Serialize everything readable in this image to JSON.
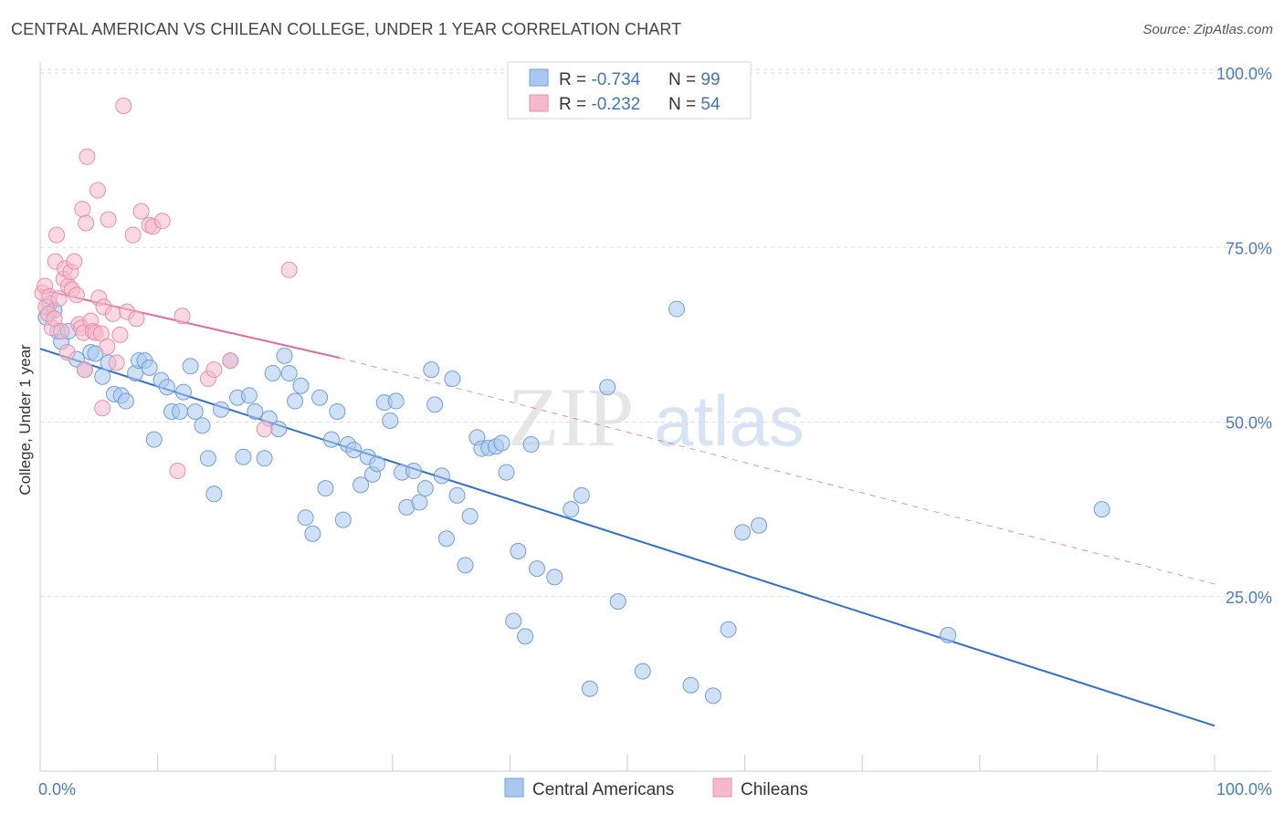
{
  "title": "CENTRAL AMERICAN VS CHILEAN COLLEGE, UNDER 1 YEAR CORRELATION CHART",
  "source": "Source: ZipAtlas.com",
  "watermark": {
    "zip": "ZIP",
    "atlas": "atlas"
  },
  "colors": {
    "blue_fill": "#a9c8f0",
    "blue_stroke": "#6f9fdb",
    "blue_line": "#2f6fd0",
    "pink_fill": "#f6b9cb",
    "pink_stroke": "#ea8eab",
    "pink_line": "#e36893",
    "grid": "#dddddd",
    "tick": "#4a7ac8"
  },
  "legend": {
    "rows": [
      {
        "r_label": "R = ",
        "r_value": "-0.734",
        "n_label": "N = ",
        "n_value": "99"
      },
      {
        "r_label": "R = ",
        "r_value": "-0.232",
        "n_label": "N = ",
        "n_value": "54"
      }
    ]
  },
  "chart_data": {
    "type": "scatter",
    "title": "CENTRAL AMERICAN VS CHILEAN COLLEGE, UNDER 1 YEAR CORRELATION CHART",
    "xlabel": "",
    "ylabel": "College, Under 1 year",
    "xlim": [
      0,
      100
    ],
    "ylim": [
      0,
      100
    ],
    "x_tick_labels": [
      "0.0%",
      "100.0%"
    ],
    "y_ticks": [
      25,
      50,
      75,
      100
    ],
    "y_tick_labels": [
      "25.0%",
      "50.0%",
      "75.0%",
      "100.0%"
    ],
    "grid": true,
    "series": [
      {
        "name": "Central Americans",
        "color": "#a9c8f0",
        "trend": {
          "x": [
            0,
            100
          ],
          "y": [
            60.5,
            6.5
          ],
          "style": "solid"
        },
        "points": [
          [
            0.5,
            65
          ],
          [
            0.8,
            67
          ],
          [
            1.2,
            66
          ],
          [
            1.5,
            63
          ],
          [
            1.8,
            61.5
          ],
          [
            2.4,
            63
          ],
          [
            3.1,
            59
          ],
          [
            3.8,
            57.5
          ],
          [
            4.3,
            60
          ],
          [
            4.7,
            59.8
          ],
          [
            5.3,
            56.5
          ],
          [
            5.8,
            58.5
          ],
          [
            6.3,
            54
          ],
          [
            6.9,
            53.8
          ],
          [
            7.3,
            53
          ],
          [
            8.1,
            57
          ],
          [
            8.4,
            58.8
          ],
          [
            8.9,
            58.8
          ],
          [
            9.3,
            57.8
          ],
          [
            9.7,
            47.5
          ],
          [
            10.3,
            56
          ],
          [
            10.8,
            55
          ],
          [
            11.2,
            51.5
          ],
          [
            11.9,
            51.5
          ],
          [
            12.2,
            54.3
          ],
          [
            12.8,
            58
          ],
          [
            13.2,
            51.5
          ],
          [
            13.8,
            49.5
          ],
          [
            14.3,
            44.8
          ],
          [
            14.8,
            39.7
          ],
          [
            15.4,
            51.8
          ],
          [
            16.2,
            58.8
          ],
          [
            16.8,
            53.5
          ],
          [
            17.3,
            45
          ],
          [
            17.8,
            53.8
          ],
          [
            18.3,
            51.5
          ],
          [
            19.1,
            44.8
          ],
          [
            19.5,
            50.5
          ],
          [
            19.8,
            57
          ],
          [
            20.3,
            49
          ],
          [
            20.8,
            59.5
          ],
          [
            21.2,
            57
          ],
          [
            21.7,
            53
          ],
          [
            22.2,
            55.2
          ],
          [
            22.6,
            36.3
          ],
          [
            23.2,
            34
          ],
          [
            23.8,
            53.5
          ],
          [
            24.3,
            40.5
          ],
          [
            24.8,
            47.5
          ],
          [
            25.3,
            51.5
          ],
          [
            25.8,
            36
          ],
          [
            26.2,
            46.8
          ],
          [
            26.7,
            46
          ],
          [
            27.3,
            41
          ],
          [
            27.9,
            45
          ],
          [
            28.3,
            42.5
          ],
          [
            28.7,
            44
          ],
          [
            29.3,
            52.8
          ],
          [
            29.8,
            50.2
          ],
          [
            30.3,
            53
          ],
          [
            30.8,
            42.8
          ],
          [
            31.2,
            37.8
          ],
          [
            31.8,
            43
          ],
          [
            32.3,
            38.5
          ],
          [
            32.8,
            40.5
          ],
          [
            33.3,
            57.5
          ],
          [
            33.6,
            52.5
          ],
          [
            34.2,
            42.3
          ],
          [
            34.6,
            33.3
          ],
          [
            35.1,
            56.2
          ],
          [
            35.5,
            39.5
          ],
          [
            36.2,
            29.5
          ],
          [
            36.6,
            36.5
          ],
          [
            37.2,
            47.8
          ],
          [
            37.6,
            46.2
          ],
          [
            38.2,
            46.3
          ],
          [
            38.8,
            46.5
          ],
          [
            39.3,
            47
          ],
          [
            39.7,
            42.8
          ],
          [
            40.3,
            21.5
          ],
          [
            40.7,
            31.5
          ],
          [
            41.3,
            19.3
          ],
          [
            41.8,
            46.8
          ],
          [
            42.3,
            29
          ],
          [
            43.8,
            27.8
          ],
          [
            45.2,
            37.5
          ],
          [
            46.1,
            39.5
          ],
          [
            46.8,
            11.8
          ],
          [
            48.3,
            55
          ],
          [
            49.2,
            24.3
          ],
          [
            51.3,
            14.3
          ],
          [
            54.2,
            66.2
          ],
          [
            55.4,
            12.3
          ],
          [
            57.3,
            10.8
          ],
          [
            58.6,
            20.3
          ],
          [
            59.8,
            34.2
          ],
          [
            61.2,
            35.2
          ],
          [
            77.3,
            19.5
          ],
          [
            90.4,
            37.5
          ]
        ]
      },
      {
        "name": "Chileans",
        "color": "#f6b9cb",
        "trend": {
          "x": [
            0,
            25.5
          ],
          "y": [
            69,
            59.2
          ],
          "style": "solid",
          "dash_to": [
            100,
            26.8
          ]
        },
        "points": [
          [
            0.2,
            68.5
          ],
          [
            0.4,
            69.5
          ],
          [
            0.5,
            66.5
          ],
          [
            0.7,
            65.5
          ],
          [
            0.8,
            68
          ],
          [
            1.0,
            63.5
          ],
          [
            1.2,
            64.8
          ],
          [
            1.3,
            73
          ],
          [
            1.4,
            76.8
          ],
          [
            1.6,
            67.7
          ],
          [
            1.8,
            63
          ],
          [
            2.0,
            70.5
          ],
          [
            2.1,
            72
          ],
          [
            2.3,
            60
          ],
          [
            2.4,
            69.5
          ],
          [
            2.6,
            71.5
          ],
          [
            2.7,
            69
          ],
          [
            2.9,
            73
          ],
          [
            3.1,
            68.2
          ],
          [
            3.3,
            64
          ],
          [
            3.5,
            63.5
          ],
          [
            3.6,
            80.5
          ],
          [
            3.7,
            62.8
          ],
          [
            3.8,
            57.5
          ],
          [
            3.9,
            78.5
          ],
          [
            4.0,
            88
          ],
          [
            4.3,
            64.5
          ],
          [
            4.5,
            63
          ],
          [
            4.7,
            62.8
          ],
          [
            4.9,
            83.2
          ],
          [
            5.0,
            67.8
          ],
          [
            5.2,
            62.7
          ],
          [
            5.3,
            52
          ],
          [
            5.4,
            66.5
          ],
          [
            5.7,
            60.8
          ],
          [
            5.8,
            79
          ],
          [
            6.2,
            65.5
          ],
          [
            6.5,
            58.5
          ],
          [
            6.8,
            62.5
          ],
          [
            7.1,
            95.3
          ],
          [
            7.4,
            65.8
          ],
          [
            7.9,
            76.8
          ],
          [
            8.2,
            64.8
          ],
          [
            8.6,
            80.2
          ],
          [
            9.3,
            78.2
          ],
          [
            9.6,
            78
          ],
          [
            10.4,
            78.8
          ],
          [
            11.7,
            43
          ],
          [
            12.1,
            65.2
          ],
          [
            14.3,
            56.2
          ],
          [
            14.8,
            57.5
          ],
          [
            16.2,
            58.8
          ],
          [
            19.1,
            49
          ],
          [
            21.2,
            71.8
          ]
        ]
      }
    ]
  },
  "bottom_legend": [
    "Central Americans",
    "Chileans"
  ]
}
